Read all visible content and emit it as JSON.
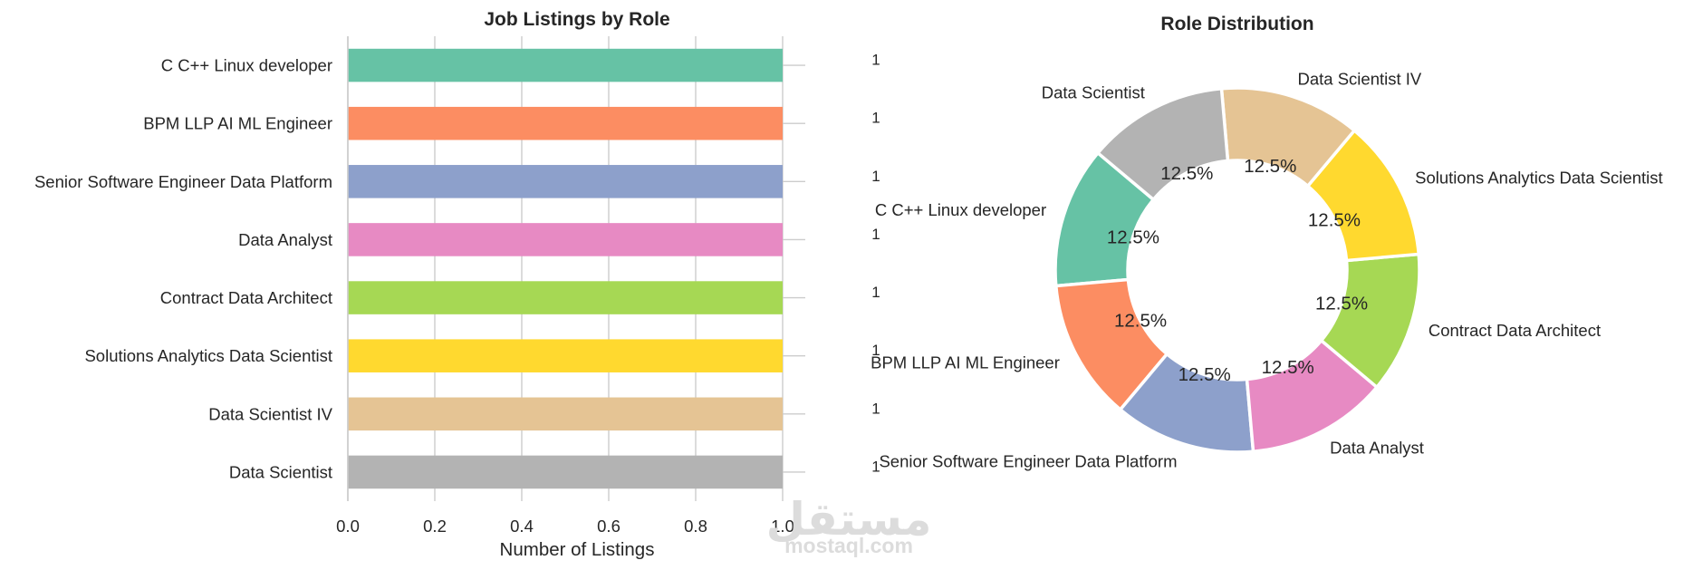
{
  "chart_data": [
    {
      "type": "bar",
      "orientation": "horizontal",
      "title": "Job Listings by Role",
      "xlabel": "Number of Listings",
      "ylabel": "",
      "xlim": [
        0,
        1.0
      ],
      "xticks": [
        "0.0",
        "0.2",
        "0.4",
        "0.6",
        "0.8",
        "1.0"
      ],
      "grid": "vertical",
      "categories": [
        "C C++ Linux developer",
        "BPM LLP AI ML Engineer",
        "Senior Software Engineer Data Platform",
        "Data Analyst",
        "Contract Data Architect",
        "Solutions Analytics Data Scientist",
        "Data Scientist IV",
        "Data Scientist"
      ],
      "values": [
        1,
        1,
        1,
        1,
        1,
        1,
        1,
        1
      ],
      "value_labels": [
        "1",
        "1",
        "1",
        "1",
        "1",
        "1",
        "1",
        "1"
      ],
      "colors": [
        "#66c2a5",
        "#fc8d62",
        "#8da0cb",
        "#e78ac3",
        "#a6d854",
        "#ffd92f",
        "#e5c494",
        "#b3b3b3"
      ]
    },
    {
      "type": "pie",
      "style": "donut",
      "title": "Role Distribution",
      "labels": [
        "C C++ Linux developer",
        "BPM LLP AI ML Engineer",
        "Senior Software Engineer Data Platform",
        "Data Analyst",
        "Contract Data Architect",
        "Solutions Analytics Data Scientist",
        "Data Scientist IV",
        "Data Scientist"
      ],
      "values": [
        1,
        1,
        1,
        1,
        1,
        1,
        1,
        1
      ],
      "percent_labels": [
        "12.5%",
        "12.5%",
        "12.5%",
        "12.5%",
        "12.5%",
        "12.5%",
        "12.5%",
        "12.5%"
      ],
      "start_angle_deg": 140,
      "colors": [
        "#66c2a5",
        "#fc8d62",
        "#8da0cb",
        "#e78ac3",
        "#a6d854",
        "#ffd92f",
        "#e5c494",
        "#b3b3b3"
      ]
    }
  ],
  "watermark": {
    "arabic": "مستقل",
    "latin": "mostaql.com"
  }
}
